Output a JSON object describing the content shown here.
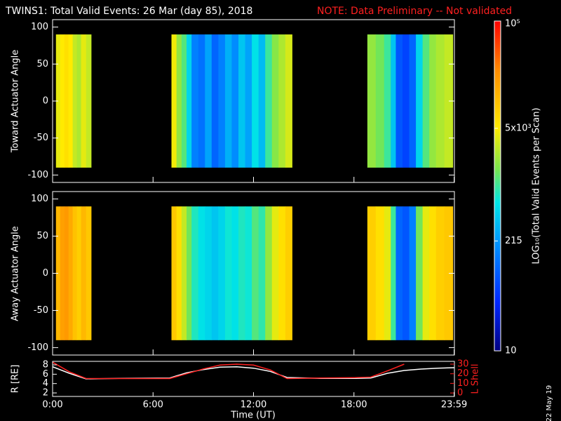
{
  "date": "22 May 19",
  "chart_data": [
    {
      "type": "heatmap",
      "title": "TWINS1: Total Valid Events: 26 Mar (day  85), 2018",
      "note": "NOTE: Data Preliminary -- Not validated",
      "ylabel": "Toward Actuator Angle",
      "xlim": [
        0,
        24
      ],
      "ylim": [
        -110,
        110
      ],
      "yticks": [
        100,
        50,
        0,
        -50,
        -100
      ],
      "extent": [
        -90,
        90
      ],
      "zlabel": "LOG₁₀(Total Valid Events per Scan)",
      "zlim": [
        10,
        100000
      ],
      "zlog": true,
      "zticks": [
        10,
        215,
        {
          "value": 5000,
          "label": "5x10³"
        },
        {
          "value": 100000,
          "label": "10⁵"
        }
      ],
      "blocks": [
        {
          "bins": [
            0.2,
            0.45,
            0.7,
            0.95,
            1.2,
            1.45,
            1.7,
            2.0,
            2.3
          ],
          "values": [
            4000,
            5000,
            6000,
            5000,
            3000,
            2500,
            4000,
            3000
          ]
        },
        {
          "bins": [
            7.1,
            7.4,
            7.7,
            8.0,
            8.3,
            8.7,
            9.1,
            9.5,
            9.9,
            10.3,
            10.7,
            11.1,
            11.5,
            11.9,
            12.3,
            12.7,
            13.1,
            13.5,
            13.9,
            14.3
          ],
          "values": [
            4500,
            2000,
            1200,
            500,
            150,
            120,
            250,
            100,
            150,
            300,
            180,
            400,
            250,
            600,
            350,
            1000,
            1800,
            2500,
            3500
          ]
        },
        {
          "bins": [
            18.8,
            19.3,
            19.8,
            20.2,
            20.5,
            20.9,
            21.3,
            21.7,
            22.1,
            22.5,
            22.9,
            23.4,
            23.9
          ],
          "values": [
            2000,
            1500,
            1000,
            400,
            80,
            60,
            100,
            500,
            1200,
            2000,
            2500,
            3000
          ]
        }
      ]
    },
    {
      "type": "heatmap",
      "ylabel": "Away Actuator Angle",
      "xlim": [
        0,
        24
      ],
      "ylim": [
        -110,
        110
      ],
      "yticks": [
        100,
        50,
        0,
        -50,
        -100
      ],
      "extent": [
        -90,
        90
      ],
      "blocks": [
        {
          "bins": [
            0.2,
            0.45,
            0.7,
            0.95,
            1.2,
            1.45,
            1.7,
            2.0,
            2.3
          ],
          "values": [
            12000,
            18000,
            20000,
            15000,
            10000,
            8000,
            12000,
            9000
          ]
        },
        {
          "bins": [
            7.1,
            7.4,
            7.7,
            8.0,
            8.3,
            8.7,
            9.1,
            9.5,
            9.9,
            10.3,
            10.7,
            11.1,
            11.5,
            11.9,
            12.3,
            12.7,
            13.1,
            13.5,
            13.9,
            14.3
          ],
          "values": [
            9000,
            6000,
            3000,
            1500,
            800,
            600,
            500,
            400,
            500,
            700,
            600,
            800,
            700,
            1200,
            900,
            2000,
            4000,
            6000,
            8000
          ]
        },
        {
          "bins": [
            18.8,
            19.3,
            19.8,
            20.2,
            20.5,
            20.9,
            21.3,
            21.7,
            22.1,
            22.5,
            22.9,
            23.4,
            23.9
          ],
          "values": [
            8000,
            6000,
            4000,
            1000,
            100,
            80,
            150,
            1500,
            4000,
            6000,
            8000,
            9000
          ]
        }
      ]
    },
    {
      "type": "line",
      "xlabel": "Time (UT)",
      "ylabel": "R [RE]",
      "y2label": "L Shell",
      "xlim": [
        0,
        24
      ],
      "xticks": [
        {
          "value": 0,
          "label": "0:00"
        },
        {
          "value": 6,
          "label": "6:00"
        },
        {
          "value": 12,
          "label": "12:00"
        },
        {
          "value": 18,
          "label": "18:00"
        },
        {
          "value": 23.983,
          "label": "23:59"
        }
      ],
      "ylim": [
        1.25,
        8.75
      ],
      "yticks": [
        2,
        4,
        6,
        8
      ],
      "y2lim": [
        -3.6,
        32.9
      ],
      "y2ticks": [
        0,
        10,
        20,
        30
      ],
      "x": [
        0,
        1,
        2,
        4,
        7,
        8,
        9,
        10,
        11,
        12,
        13,
        14,
        16,
        18,
        19,
        20,
        21,
        22,
        23,
        24
      ],
      "series": [
        {
          "name": "R",
          "color": "#ffffff",
          "values": [
            7.6,
            6.2,
            5.0,
            5.1,
            5.2,
            6.3,
            7.0,
            7.5,
            7.6,
            7.3,
            6.6,
            5.3,
            5.1,
            5.1,
            5.2,
            6.2,
            6.8,
            7.1,
            7.3,
            7.4
          ]
        },
        {
          "name": "L Shell",
          "color": "#ff2020",
          "axis": "y2",
          "values": [
            32,
            22,
            15,
            15,
            15,
            20,
            25,
            29,
            30,
            29,
            24,
            15,
            15.5,
            16,
            16.5,
            23,
            30,
            null,
            null,
            null
          ]
        }
      ]
    }
  ]
}
